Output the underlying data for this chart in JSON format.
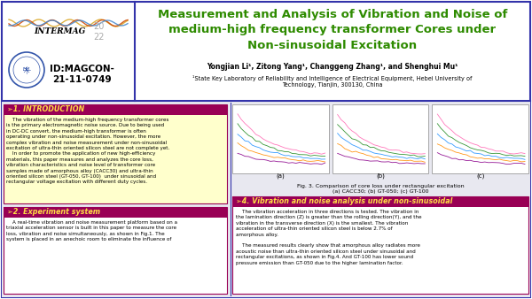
{
  "outer_bg": "#ffffff",
  "header_border_color": "#3333aa",
  "title_text": "Measurement and Analysis of Vibration and Noise of\nmedium-high frequency transformer Cores under\nNon-sinusoidal Excitation",
  "title_color": "#2e8b00",
  "authors_text": "Yongjian Li¹, Zitong Yang¹, Changgeng Zhang¹, and Shenghui Mu¹",
  "affil_text": "¹State Key Laboratory of Reliability and Intelligence of Electrical Equipment, Hebei University of\nTechnology, Tianjin, 300130, China",
  "id_text": "ID:MAGCON-\n21-11-0749",
  "section1_title": "➢1. INTRODUCTION",
  "section1_text": "    The vibration of the medium-high frequency transformer cores\nis the primary electromagnetic noise source. Due to being used\nin DC-DC convert, the medium-high transformer is often\noperating under non-sinusoidal excitation. However, the more\ncomplex vibration and noise measurement under non-sinusoidal\nexcitation of ultra-thin oriented silicon steel are not complete yet.\n    In order to promote the application of new high-efficiency\nmaterials, this paper measures and analyzes the core loss,\nvibration characteristics and noise level of transformer core\nsamples made of amorphous alloy (CACC30) and ultra-thin\noriented silicon steel (GT-050, GT-100)  under sinusoidal and\nrectangular voltage excitation with different duty cycles.",
  "section2_title": "➢2. Experiment system",
  "section2_text": "    A real-time vibration and noise measurement platform based on a\ntriaxial acceleration sensor is built in this paper to measure the core\nloss, vibration and noise simultaneously, as shown in Fig.1. The\nsystem is placed in an anechoic room to eliminate the influence of",
  "fig3_caption": "Fig. 3. Comparison of core loss under rectangular excitation\n(a) CACC30; (b) GT-050; (c) GT-100",
  "section4_title": "➢4. Vibration and noise analysis under non-sinusoidal",
  "section4_text": "    The vibration acceleration in three directions is tested. The vibration in\nthe lamination direction (Z) is greater than the rolling direction(Y), and the\nvibration in the transverse direction (X) is the smallest. The vibration\nacceleration of ultra-thin oriented silicon steel is below 2.7% of\namorphous alloy.\n\n    The measured results clearly show that amorphous alloy radiates more\nacoustic noise than ultra-thin oriented silicon steel under sinusoidal and\nrectangular excitations, as shown in Fig.4. And GT-100 has lower sound\npressure emission than GT-050 due to the higher lamination factor.",
  "divider_color": "#3333aa",
  "section_header_color": "#990055",
  "section_header_text_color": "#ffdd44",
  "logo_color_blue": "#3355aa",
  "body_bg": "#e8e8f0",
  "section1_bg": "#ffffcc",
  "section2_bg": "#ffffff",
  "section4_bg": "#ffffff",
  "curve_colors": [
    "#ff69b4",
    "#228B22",
    "#1e90ff",
    "#ff8c00",
    "#8b008b"
  ]
}
